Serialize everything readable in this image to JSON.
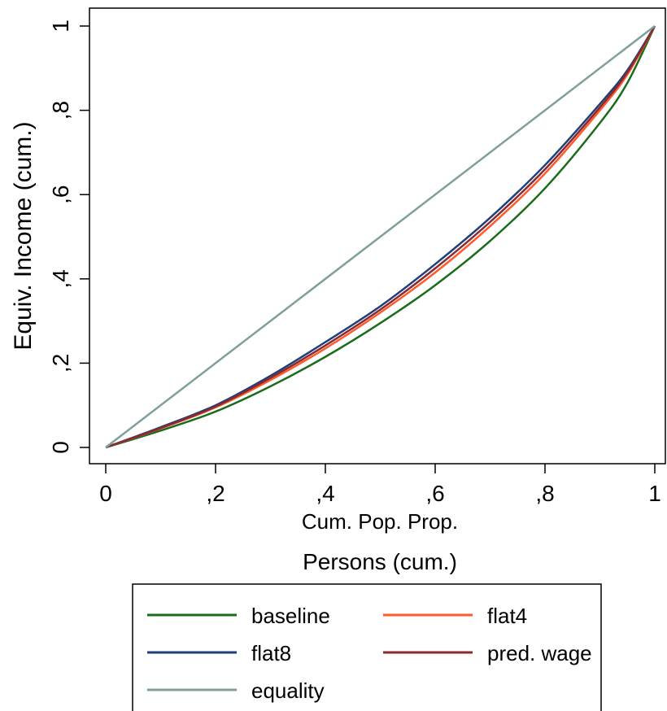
{
  "chart_data": {
    "type": "line",
    "title": "",
    "xlabel": "Cum. Pop. Prop.",
    "xlabel2": "Persons (cum.)",
    "ylabel": "Equiv. Income (cum.)",
    "xlim": [
      0,
      1
    ],
    "ylim": [
      0,
      1
    ],
    "xticks": [
      0,
      0.2,
      0.4,
      0.6,
      0.8,
      1
    ],
    "xtick_labels": [
      "0",
      ",2",
      ",4",
      ",6",
      ",8",
      "1"
    ],
    "yticks": [
      0,
      0.2,
      0.4,
      0.6,
      0.8,
      1
    ],
    "ytick_labels": [
      "0",
      ",2",
      ",4",
      ",6",
      ",8",
      "1"
    ],
    "grid": false,
    "legend_position": "bottom",
    "series": [
      {
        "name": "baseline",
        "color": "#1a6b1a",
        "x": [
          0,
          0.1,
          0.2,
          0.3,
          0.4,
          0.5,
          0.6,
          0.7,
          0.8,
          0.9,
          0.95,
          1
        ],
        "y": [
          0,
          0.04,
          0.085,
          0.145,
          0.215,
          0.295,
          0.385,
          0.49,
          0.615,
          0.77,
          0.865,
          1
        ]
      },
      {
        "name": "flat4",
        "color": "#ff5a2a",
        "x": [
          0,
          0.1,
          0.2,
          0.3,
          0.4,
          0.5,
          0.6,
          0.7,
          0.8,
          0.9,
          0.95,
          1
        ],
        "y": [
          0,
          0.045,
          0.095,
          0.16,
          0.235,
          0.32,
          0.415,
          0.525,
          0.65,
          0.8,
          0.885,
          1
        ]
      },
      {
        "name": "flat8",
        "color": "#1e3f7a",
        "x": [
          0,
          0.1,
          0.2,
          0.3,
          0.4,
          0.5,
          0.6,
          0.7,
          0.8,
          0.9,
          0.95,
          1
        ],
        "y": [
          0,
          0.048,
          0.1,
          0.17,
          0.25,
          0.335,
          0.435,
          0.545,
          0.67,
          0.815,
          0.895,
          1
        ]
      },
      {
        "name": "pred. wage",
        "color": "#8a2a30",
        "x": [
          0,
          0.1,
          0.2,
          0.3,
          0.4,
          0.5,
          0.6,
          0.7,
          0.8,
          0.9,
          0.95,
          1
        ],
        "y": [
          0,
          0.046,
          0.097,
          0.165,
          0.242,
          0.327,
          0.425,
          0.535,
          0.66,
          0.807,
          0.89,
          1
        ]
      },
      {
        "name": "equality",
        "color": "#7fa09a",
        "x": [
          0,
          1
        ],
        "y": [
          0,
          1
        ]
      }
    ]
  }
}
